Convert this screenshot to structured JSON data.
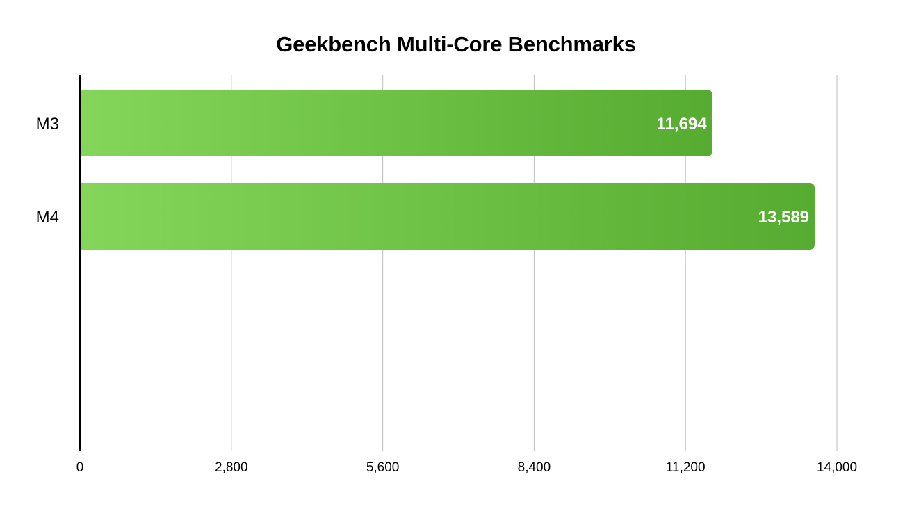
{
  "chart_data": {
    "type": "bar",
    "orientation": "horizontal",
    "title": "Geekbench Multi-Core Benchmarks",
    "categories": [
      "M3",
      "M4"
    ],
    "values": [
      11694,
      13589
    ],
    "value_labels": [
      "11,694",
      "13,589"
    ],
    "xlim": [
      0,
      14000
    ],
    "x_ticks": [
      0,
      2800,
      5600,
      8400,
      11200,
      14000
    ],
    "x_tick_labels": [
      "0",
      "2,800",
      "5,600",
      "8,400",
      "11,200",
      "14,000"
    ],
    "xlabel": "",
    "ylabel": "",
    "grid": true,
    "legend": "none",
    "colors": {
      "bar_start": "#84d65a",
      "bar_end": "#56ac30",
      "grid": "#c8c8c8",
      "axis": "#000000",
      "value_label": "#ffffff"
    }
  }
}
